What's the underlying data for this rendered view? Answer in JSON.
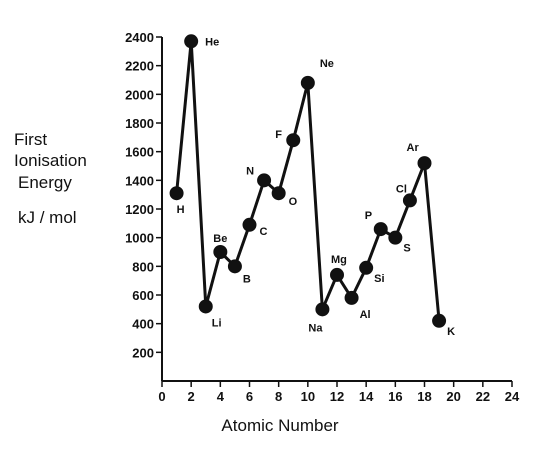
{
  "chart_data": {
    "type": "line",
    "title": "",
    "xlabel": "Atomic Number",
    "ylabel_lines": [
      "First",
      "Ionisation",
      "Energy",
      "kJ / mol"
    ],
    "xlim": [
      0,
      24
    ],
    "ylim": [
      0,
      2400
    ],
    "x_ticks": [
      "0",
      "2",
      "4",
      "6",
      "8",
      "10",
      "12",
      "14",
      "16",
      "18",
      "20",
      "22",
      "24"
    ],
    "y_ticks": [
      "200",
      "400",
      "600",
      "800",
      "1000",
      "1200",
      "1400",
      "1600",
      "1800",
      "2000",
      "2200",
      "2400"
    ],
    "grid": false,
    "series": [
      {
        "points": [
          {
            "x": 1,
            "y": 1310,
            "label": "H"
          },
          {
            "x": 2,
            "y": 2370,
            "label": "He"
          },
          {
            "x": 3,
            "y": 520,
            "label": "Li"
          },
          {
            "x": 4,
            "y": 900,
            "label": "Be"
          },
          {
            "x": 5,
            "y": 800,
            "label": "B"
          },
          {
            "x": 6,
            "y": 1090,
            "label": "C"
          },
          {
            "x": 7,
            "y": 1400,
            "label": "N"
          },
          {
            "x": 8,
            "y": 1310,
            "label": "O"
          },
          {
            "x": 9,
            "y": 1680,
            "label": "F"
          },
          {
            "x": 10,
            "y": 2080,
            "label": "Ne"
          },
          {
            "x": 11,
            "y": 500,
            "label": "Na"
          },
          {
            "x": 12,
            "y": 740,
            "label": "Mg"
          },
          {
            "x": 13,
            "y": 580,
            "label": "Al"
          },
          {
            "x": 14,
            "y": 790,
            "label": "Si"
          },
          {
            "x": 15,
            "y": 1060,
            "label": "P"
          },
          {
            "x": 16,
            "y": 1000,
            "label": "S"
          },
          {
            "x": 17,
            "y": 1260,
            "label": "Cl"
          },
          {
            "x": 18,
            "y": 1520,
            "label": "Ar"
          },
          {
            "x": 19,
            "y": 420,
            "label": "K"
          }
        ]
      }
    ]
  }
}
